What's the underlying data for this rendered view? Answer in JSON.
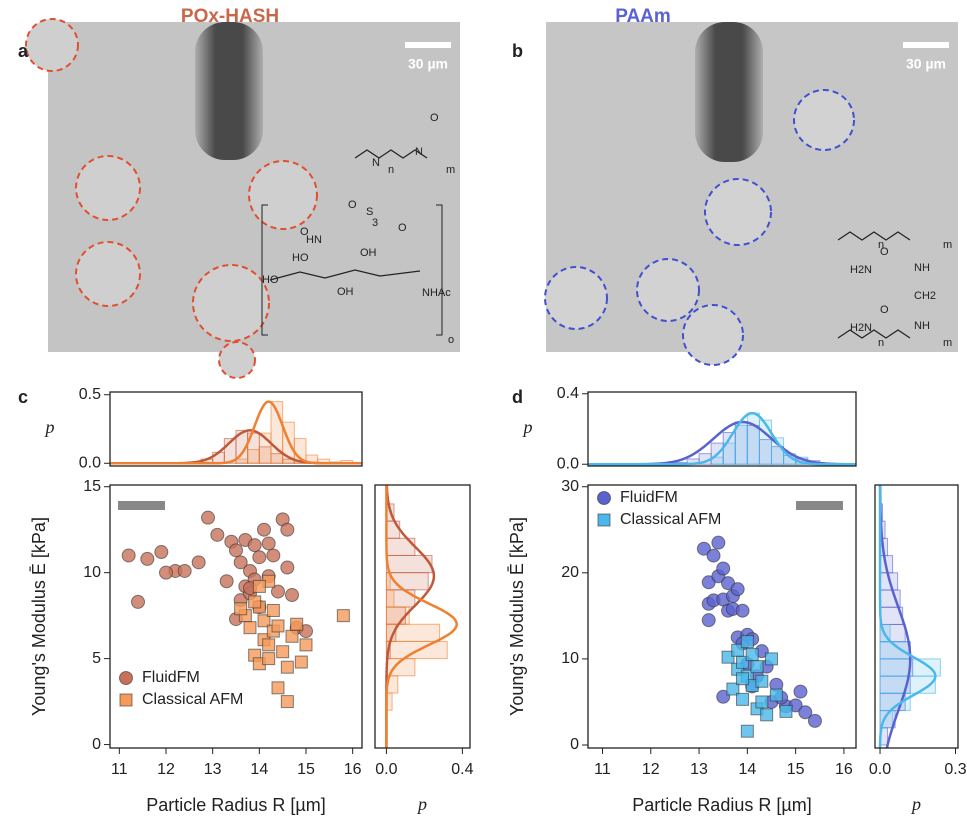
{
  "figure": {
    "titles": [
      "POx-HASH",
      "PAAm"
    ],
    "panel_labels": [
      "a",
      "b",
      "c",
      "d"
    ],
    "scale_bars": [
      "30 µm",
      "30 µm"
    ],
    "structure_labels_a": [
      "N",
      "N",
      "O",
      "O",
      "S",
      "O",
      "HN",
      "HO",
      "OH",
      "HO",
      "O",
      "NHAc",
      "OH",
      "n",
      "m",
      "3",
      "o"
    ],
    "structure_labels_b": [
      "n",
      "m",
      "H2N",
      "O",
      "NH",
      "CH2",
      "H2N",
      "O",
      "NH",
      "n",
      "m"
    ]
  },
  "chart_data": [
    {
      "type": "scatter",
      "x_label": "Particle Radius R [µm]",
      "y_label": "Young's Modulus Ē [kPa]",
      "xlim": [
        10.8,
        16.2
      ],
      "ylim": [
        -0.2,
        15.1
      ],
      "xticks": [
        11,
        12,
        13,
        14,
        15,
        16
      ],
      "yticks": [
        0,
        5,
        10,
        15
      ],
      "legend": "lower left",
      "series": [
        {
          "name": "FluidFM",
          "color": "#c8705a",
          "marker": "circle",
          "x": [
            11.2,
            11.4,
            11.6,
            11.9,
            12.2,
            12.4,
            12.7,
            12.9,
            13.1,
            13.3,
            13.4,
            13.5,
            13.6,
            13.6,
            13.7,
            13.7,
            13.8,
            13.8,
            13.9,
            13.9,
            14.0,
            14.0,
            14.1,
            14.2,
            14.3,
            14.4,
            14.5,
            14.6,
            14.6,
            14.7,
            14.8,
            15.0,
            13.5,
            13.8,
            14.2,
            12.0
          ],
          "values": [
            11.0,
            8.3,
            10.8,
            11.2,
            10.1,
            10.1,
            10.6,
            13.2,
            12.2,
            9.5,
            11.8,
            11.3,
            10.6,
            8.4,
            11.9,
            9.2,
            10.1,
            8.8,
            11.6,
            9.6,
            10.9,
            8.0,
            12.5,
            9.8,
            11.0,
            8.9,
            13.1,
            10.3,
            12.5,
            8.7,
            6.8,
            6.6,
            7.3,
            9.1,
            11.7,
            10.0
          ]
        },
        {
          "name": "Classical AFM",
          "color": "#f59a5a",
          "marker": "square",
          "x": [
            13.7,
            13.8,
            13.9,
            14.0,
            14.0,
            14.1,
            14.1,
            14.2,
            14.2,
            14.3,
            14.3,
            14.4,
            14.5,
            14.6,
            14.7,
            14.8,
            14.9,
            15.0,
            15.8,
            14.0,
            14.4,
            14.6,
            13.9,
            14.2,
            13.6
          ],
          "values": [
            7.5,
            6.8,
            5.2,
            8.0,
            4.7,
            7.2,
            6.1,
            9.5,
            5.8,
            7.8,
            6.6,
            3.3,
            5.4,
            2.5,
            6.3,
            7.0,
            4.8,
            5.8,
            7.5,
            9.2,
            6.9,
            4.5,
            8.3,
            5.0,
            7.9
          ]
        }
      ]
    },
    {
      "type": "histogram",
      "orientation": "vertical",
      "y_label": "p",
      "xlim": [
        10.8,
        16.2
      ],
      "ylim": [
        -0.02,
        0.52
      ],
      "yticks": [
        {
          "value": 0,
          "label": "0.0"
        },
        0.5
      ],
      "series": [
        {
          "color": "#c0583a",
          "bins": [
            12.5,
            12.75,
            13.0,
            13.25,
            13.5,
            13.75,
            14.0,
            14.25,
            14.5,
            14.75,
            15.0
          ],
          "values": [
            0.01,
            0.03,
            0.08,
            0.18,
            0.24,
            0.22,
            0.12,
            0.07,
            0.03,
            0.02
          ],
          "fit_mean": 13.8,
          "fit_sd": 0.45,
          "fit_peak": 0.24
        },
        {
          "color": "#f08030",
          "bins": [
            13.5,
            13.75,
            14.0,
            14.25,
            14.5,
            14.75,
            15.0,
            15.25,
            15.5,
            15.75,
            16.0
          ],
          "values": [
            0.03,
            0.1,
            0.22,
            0.45,
            0.3,
            0.18,
            0.06,
            0.03,
            0.01,
            0.02
          ],
          "fit_mean": 14.2,
          "fit_sd": 0.3,
          "fit_peak": 0.45
        }
      ]
    },
    {
      "type": "histogram",
      "orientation": "horizontal",
      "x_label": "p",
      "xlim": [
        -0.06,
        0.44
      ],
      "ylim": [
        -0.2,
        15.1
      ],
      "xticks": [
        {
          "value": 0,
          "label": "0.0"
        },
        0.4
      ],
      "series": [
        {
          "color": "#c0583a",
          "bins": [
            5,
            6,
            7,
            8,
            9,
            10,
            11,
            12,
            13,
            14
          ],
          "values": [
            0.02,
            0.05,
            0.1,
            0.15,
            0.22,
            0.24,
            0.15,
            0.07,
            0.04
          ],
          "fit_mean": 9.8,
          "fit_sd": 1.7,
          "fit_peak": 0.25
        },
        {
          "color": "#f08030",
          "bins": [
            2,
            3,
            4,
            5,
            6,
            7,
            8,
            9,
            10
          ],
          "values": [
            0.03,
            0.06,
            0.15,
            0.32,
            0.28,
            0.12,
            0.04,
            0.02
          ],
          "fit_mean": 7.0,
          "fit_sd": 1.2,
          "fit_peak": 0.37
        }
      ]
    },
    {
      "type": "scatter",
      "x_label": "Particle Radius R [µm]",
      "y_label": "Young's Modulus Ē [kPa]",
      "xlim": [
        10.7,
        16.25
      ],
      "ylim": [
        -0.35,
        30.2
      ],
      "xticks": [
        11,
        12,
        13,
        14,
        15,
        16
      ],
      "yticks": [
        0,
        10,
        20,
        30
      ],
      "legend": "upper left",
      "series": [
        {
          "name": "FluidFM",
          "color": "#5a62d0",
          "marker": "circle",
          "x": [
            13.1,
            13.2,
            13.2,
            13.3,
            13.3,
            13.4,
            13.4,
            13.5,
            13.5,
            13.6,
            13.6,
            13.7,
            13.7,
            13.8,
            13.8,
            13.9,
            13.9,
            14.0,
            14.0,
            14.1,
            14.2,
            14.3,
            14.4,
            14.5,
            14.6,
            14.8,
            15.0,
            15.2,
            15.4,
            13.2,
            13.5,
            14.1,
            14.7,
            15.1
          ],
          "values": [
            22.8,
            16.4,
            18.9,
            22.0,
            16.8,
            23.5,
            19.6,
            20.5,
            16.9,
            18.8,
            15.6,
            17.3,
            15.8,
            18.1,
            12.5,
            15.6,
            11.8,
            12.8,
            9.4,
            12.3,
            8.0,
            10.9,
            9.1,
            5.0,
            7.0,
            4.5,
            4.6,
            3.8,
            2.8,
            14.5,
            5.6,
            6.8,
            5.5,
            6.2
          ]
        },
        {
          "name": "Classical AFM",
          "color": "#4ab8ea",
          "marker": "square",
          "x": [
            13.6,
            13.7,
            13.8,
            13.8,
            13.9,
            13.9,
            14.0,
            14.0,
            14.1,
            14.1,
            14.2,
            14.2,
            14.3,
            14.4,
            14.5,
            14.6,
            14.8,
            13.9,
            14.0,
            14.3
          ],
          "values": [
            10.2,
            6.5,
            8.8,
            11.0,
            5.3,
            9.6,
            1.6,
            8.0,
            10.5,
            6.9,
            4.2,
            9.1,
            7.4,
            3.5,
            10.0,
            5.8,
            3.9,
            7.7,
            12.0,
            5.0
          ]
        }
      ]
    },
    {
      "type": "histogram",
      "orientation": "vertical",
      "y_label": "p",
      "xlim": [
        10.7,
        16.25
      ],
      "ylim": [
        -0.01,
        0.41
      ],
      "yticks": [
        {
          "value": 0,
          "label": "0.0"
        },
        0.4
      ],
      "series": [
        {
          "color": "#5a62d0",
          "bins": [
            12.5,
            12.75,
            13.0,
            13.25,
            13.5,
            13.75,
            14.0,
            14.25,
            14.5,
            14.75,
            15.0,
            15.25,
            15.5
          ],
          "values": [
            0.01,
            0.03,
            0.06,
            0.12,
            0.18,
            0.24,
            0.22,
            0.14,
            0.1,
            0.05,
            0.03,
            0.02
          ],
          "fit_mean": 13.9,
          "fit_sd": 0.6,
          "fit_peak": 0.24
        },
        {
          "color": "#4ab8ea",
          "bins": [
            13.25,
            13.5,
            13.75,
            14.0,
            14.25,
            14.5,
            14.75,
            15.0,
            15.25
          ],
          "values": [
            0.04,
            0.12,
            0.22,
            0.29,
            0.25,
            0.15,
            0.06,
            0.04
          ],
          "fit_mean": 14.1,
          "fit_sd": 0.4,
          "fit_peak": 0.29
        }
      ]
    },
    {
      "type": "histogram",
      "orientation": "horizontal",
      "x_label": "p",
      "xlim": [
        -0.02,
        0.31
      ],
      "ylim": [
        -0.35,
        30.2
      ],
      "xticks": [
        {
          "value": 0,
          "label": "0.0"
        },
        0.3
      ],
      "series": [
        {
          "color": "#5a62d0",
          "bins": [
            0,
            2,
            4,
            6,
            8,
            10,
            12,
            14,
            16,
            18,
            20,
            22,
            24,
            26,
            28
          ],
          "values": [
            0.03,
            0.06,
            0.1,
            0.12,
            0.13,
            0.12,
            0.1,
            0.09,
            0.08,
            0.07,
            0.05,
            0.03,
            0.02,
            0.01
          ],
          "fit_mean": 10,
          "fit_sd": 6,
          "fit_peak": 0.12
        },
        {
          "color": "#4ab8ea",
          "bins": [
            2,
            4,
            6,
            8,
            10,
            12,
            14
          ],
          "values": [
            0.05,
            0.12,
            0.22,
            0.24,
            0.12,
            0.04
          ],
          "fit_mean": 8,
          "fit_sd": 2.2,
          "fit_peak": 0.22
        }
      ]
    }
  ]
}
